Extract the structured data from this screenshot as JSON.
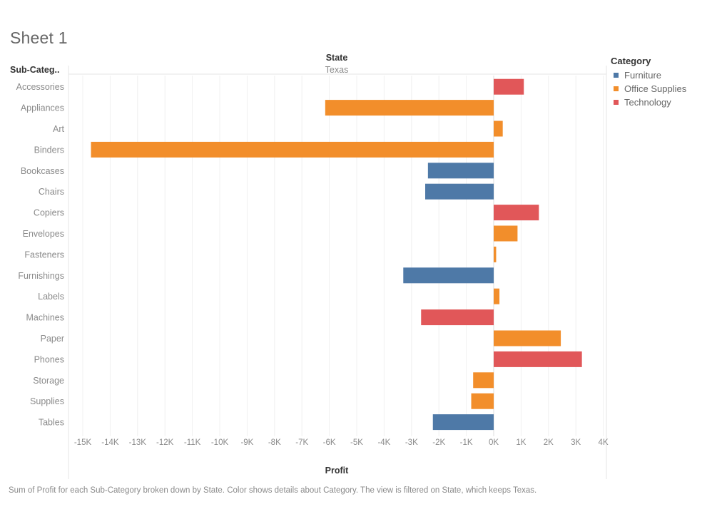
{
  "sheet": {
    "title": "Sheet 1"
  },
  "caption": "Sum of Profit for each Sub-Category broken down by State.  Color shows details about Category. The view is filtered on State, which keeps Texas.",
  "legend": {
    "title": "Category",
    "placement": "right",
    "items": [
      {
        "label": "Furniture",
        "color": "#4e79a7"
      },
      {
        "label": "Office Supplies",
        "color": "#f28e2b"
      },
      {
        "label": "Technology",
        "color": "#e15759"
      }
    ]
  },
  "chart_data": {
    "type": "bar",
    "orientation": "horizontal",
    "column_header": {
      "field": "State",
      "value": "Texas"
    },
    "row_header": "Sub-Categ..",
    "xlabel": "Profit",
    "xlim": [
      -15000,
      4000
    ],
    "xticks": [
      -15000,
      -14000,
      -13000,
      -12000,
      -11000,
      -10000,
      -9000,
      -8000,
      -7000,
      -6000,
      -5000,
      -4000,
      -3000,
      -2000,
      -1000,
      0,
      1000,
      2000,
      3000,
      4000
    ],
    "xtick_labels": [
      "-15K",
      "-14K",
      "-13K",
      "-12K",
      "-11K",
      "-10K",
      "-9K",
      "-8K",
      "-7K",
      "-6K",
      "-5K",
      "-4K",
      "-3K",
      "-2K",
      "-1K",
      "0K",
      "1K",
      "2K",
      "3K",
      "4K"
    ],
    "grid": "vertical",
    "categories": [
      "Accessories",
      "Appliances",
      "Art",
      "Binders",
      "Bookcases",
      "Chairs",
      "Copiers",
      "Envelopes",
      "Fasteners",
      "Furnishings",
      "Labels",
      "Machines",
      "Paper",
      "Phones",
      "Storage",
      "Supplies",
      "Tables"
    ],
    "values": [
      1100,
      -6150,
      330,
      -14700,
      -2400,
      -2500,
      1650,
      870,
      90,
      -3300,
      210,
      -2650,
      2450,
      3220,
      -750,
      -820,
      -2220
    ],
    "category_group": [
      "Technology",
      "Office Supplies",
      "Office Supplies",
      "Office Supplies",
      "Furniture",
      "Furniture",
      "Technology",
      "Office Supplies",
      "Office Supplies",
      "Furniture",
      "Office Supplies",
      "Technology",
      "Office Supplies",
      "Technology",
      "Office Supplies",
      "Office Supplies",
      "Furniture"
    ]
  }
}
